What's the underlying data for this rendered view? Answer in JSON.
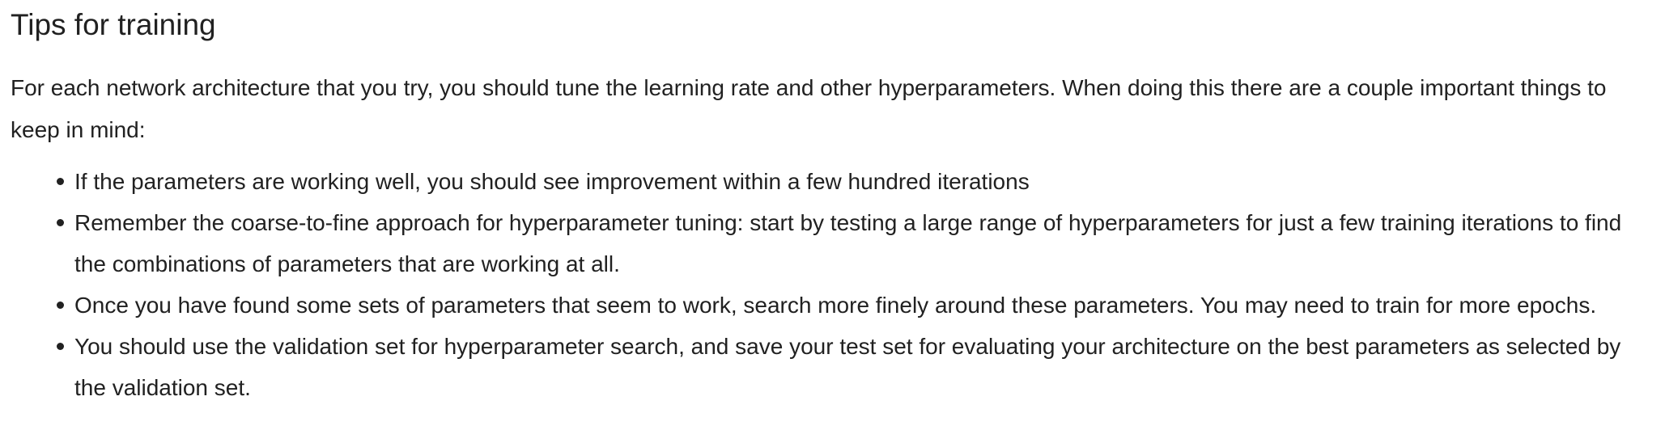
{
  "section": {
    "title": "Tips for training",
    "intro": "For each network architecture that you try, you should tune the learning rate and other hyperparameters. When doing this there are a couple important things to keep in mind:",
    "tips": [
      "If the parameters are working well, you should see improvement within a few hundred iterations",
      "Remember the coarse-to-fine approach for hyperparameter tuning: start by testing a large range of hyperparameters for just a few training iterations to find the combinations of parameters that are working at all.",
      "Once you have found some sets of parameters that seem to work, search more finely around these parameters. You may need to train for more epochs.",
      "You should use the validation set for hyperparameter search, and save your test set for evaluating your architecture on the best parameters as selected by the validation set."
    ]
  }
}
